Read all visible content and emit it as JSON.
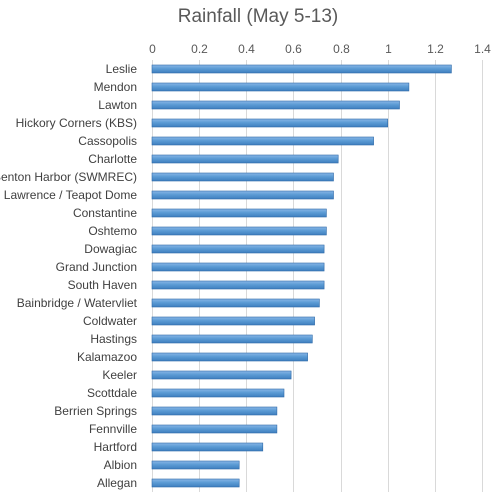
{
  "chart_data": {
    "type": "bar",
    "orientation": "horizontal",
    "title": "Rainfall (May 5-13)",
    "xlabel": "",
    "ylabel": "",
    "xlim": [
      0,
      1.4
    ],
    "x_ticks": [
      "0",
      "0.2",
      "0.4",
      "0.6",
      "0.8",
      "1",
      "1.2",
      "1.4"
    ],
    "axis_position": "top",
    "grid": true,
    "legend": "none",
    "bar_color": "#5b9bd5",
    "categories": [
      "Leslie",
      "Mendon",
      "Lawton",
      "Hickory Corners (KBS)",
      "Cassopolis",
      "Charlotte",
      "Benton Harbor (SWMREC)",
      "Lawrence / Teapot Dome",
      "Constantine",
      "Oshtemo",
      "Dowagiac",
      "Grand Junction",
      "South Haven",
      "Bainbridge / Watervliet",
      "Coldwater",
      "Hastings",
      "Kalamazoo",
      "Keeler",
      "Scottdale",
      "Berrien Springs",
      "Fennville",
      "Hartford",
      "Albion",
      "Allegan"
    ],
    "values": [
      1.27,
      1.09,
      1.05,
      1.0,
      0.94,
      0.79,
      0.77,
      0.77,
      0.74,
      0.74,
      0.73,
      0.73,
      0.73,
      0.71,
      0.69,
      0.68,
      0.66,
      0.59,
      0.56,
      0.53,
      0.53,
      0.47,
      0.37,
      0.37
    ]
  }
}
